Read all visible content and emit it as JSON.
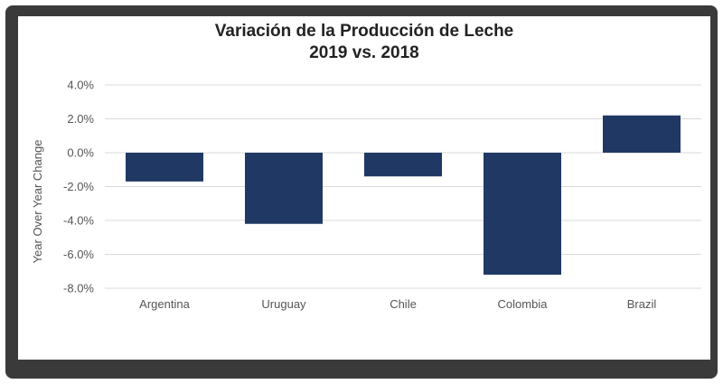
{
  "chart_data": {
    "type": "bar",
    "title": [
      "Variación de la Producción de Leche",
      "2019 vs. 2018"
    ],
    "categories": [
      "Argentina",
      "Uruguay",
      "Chile",
      "Colombia",
      "Brazil"
    ],
    "values": [
      -1.7,
      -4.2,
      -1.4,
      -7.2,
      2.2
    ],
    "unit": "%",
    "xlabel": "",
    "ylabel": "Year Over Year Change",
    "ylim": [
      -8.0,
      4.0
    ],
    "yticks": [
      "4.0%",
      "2.0%",
      "0.0%",
      "-2.0%",
      "-4.0%",
      "-6.0%",
      "-8.0%"
    ],
    "ytick_values": [
      4,
      2,
      0,
      -2,
      -4,
      -6,
      -8
    ],
    "grid": true,
    "bar_color": "#203864",
    "grid_color": "#d9d9d9"
  }
}
